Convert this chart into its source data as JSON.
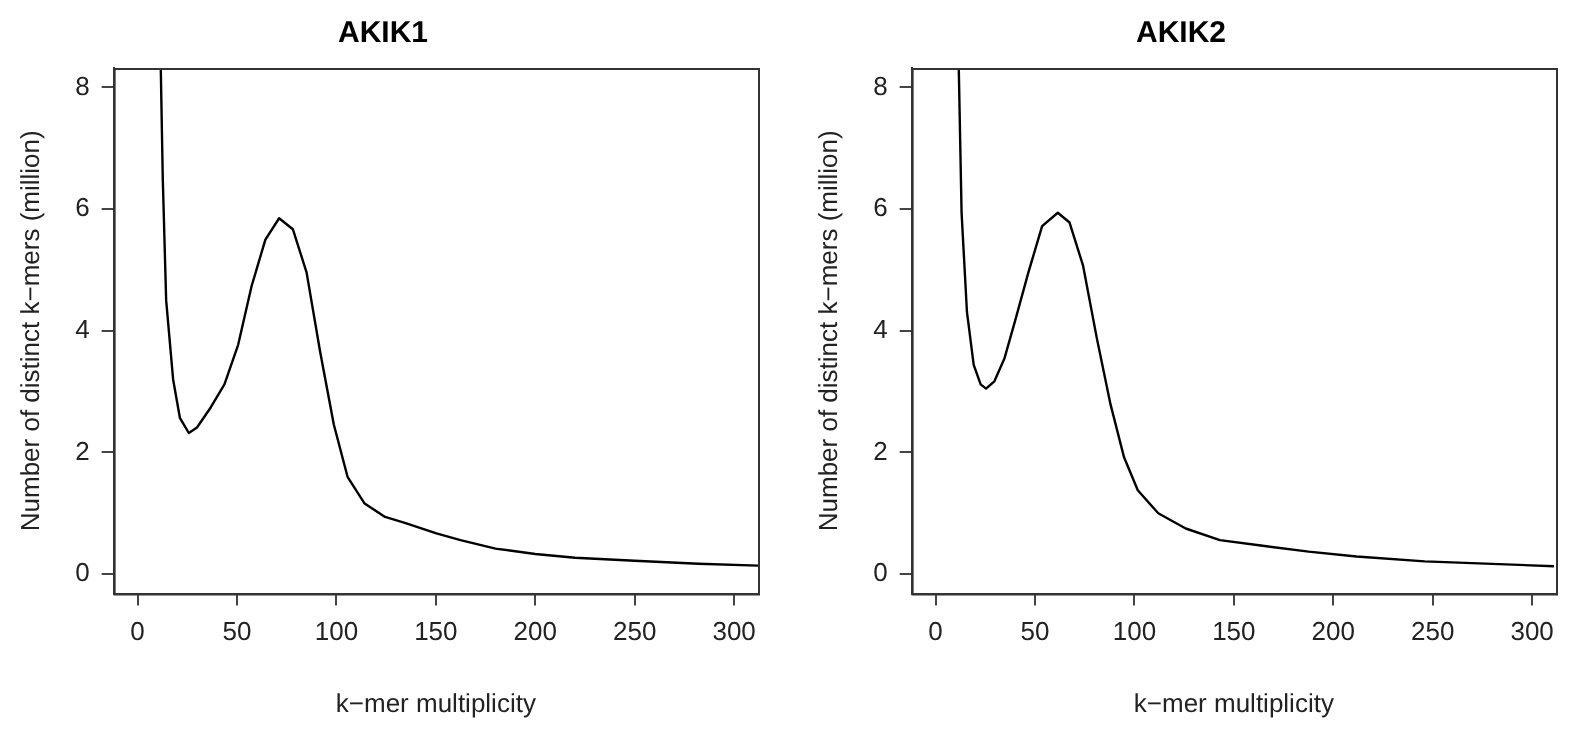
{
  "chart_data": [
    {
      "type": "line",
      "title": "AKIK1",
      "xlabel": "k−mer multiplicity",
      "ylabel": "Number of distinct k−mers (million)",
      "xlim": [
        -12,
        312
      ],
      "xticks": [
        0,
        50,
        100,
        150,
        200,
        250,
        300
      ],
      "ylim": [
        -0.32,
        8.32
      ],
      "yticks": [
        0,
        2,
        4,
        6,
        8
      ],
      "grid": false,
      "legend": false,
      "marker": "none",
      "line_style": "solid",
      "x": [
        11.7,
        12.7,
        14.4,
        17.9,
        21.3,
        25.8,
        29.9,
        36.8,
        43.7,
        50.6,
        57.4,
        64.3,
        71.2,
        78.1,
        85,
        91.8,
        98.7,
        105.6,
        114.2,
        124.5,
        134.8,
        150.3,
        162.4,
        180,
        200,
        220,
        250,
        282,
        312
      ],
      "series": [
        {
          "color": "#000000",
          "values": [
            8.3,
            6.5,
            4.5,
            3.2,
            2.57,
            2.32,
            2.41,
            2.74,
            3.12,
            3.77,
            4.74,
            5.5,
            5.85,
            5.67,
            4.96,
            3.66,
            2.46,
            1.6,
            1.16,
            0.94,
            0.84,
            0.67,
            0.56,
            0.42,
            0.33,
            0.27,
            0.22,
            0.17,
            0.14
          ]
        }
      ]
    },
    {
      "type": "line",
      "title": "AKIK2",
      "xlabel": "k−mer multiplicity",
      "ylabel": "Number of distinct k−mers (million)",
      "xlim": [
        -12,
        312
      ],
      "xticks": [
        0,
        50,
        100,
        150,
        200,
        250,
        300
      ],
      "ylim": [
        -0.32,
        8.32
      ],
      "yticks": [
        0,
        2,
        4,
        6,
        8
      ],
      "grid": false,
      "legend": false,
      "marker": "none",
      "line_style": "solid",
      "x": [
        11.7,
        13.1,
        15.8,
        19.2,
        22.7,
        25.4,
        29.6,
        34.7,
        39.9,
        46.7,
        53.6,
        61.5,
        67.4,
        74.2,
        81.1,
        88,
        94.8,
        101.7,
        112,
        125.8,
        143,
        163.6,
        187.6,
        211.7,
        246,
        311
      ],
      "series": [
        {
          "color": "#000000",
          "values": [
            8.3,
            5.94,
            4.31,
            3.44,
            3.12,
            3.05,
            3.17,
            3.55,
            4.15,
            4.96,
            5.72,
            5.94,
            5.78,
            5.07,
            3.88,
            2.79,
            1.92,
            1.38,
            1.0,
            0.75,
            0.56,
            0.47,
            0.37,
            0.29,
            0.21,
            0.13
          ]
        }
      ]
    }
  ]
}
